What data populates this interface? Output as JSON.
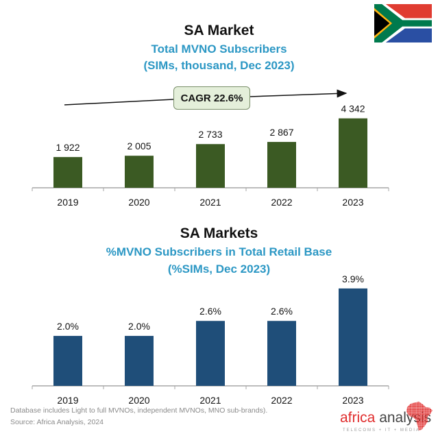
{
  "flag": {
    "icon": "south-africa-flag-icon"
  },
  "chart_data": [
    {
      "type": "bar",
      "title": "SA Market",
      "subtitle": "Total MVNO Subscribers",
      "subtitle2": "(SIMs, thousand, Dec 2023)",
      "xlabel": "",
      "ylabel": "",
      "categories": [
        "2019",
        "2020",
        "2021",
        "2022",
        "2023"
      ],
      "values": [
        1922,
        2005,
        2733,
        2867,
        4342
      ],
      "value_labels": [
        "1 922",
        "2 005",
        "2 733",
        "2 867",
        "4 342"
      ],
      "ylim": [
        0,
        4800
      ],
      "grid": false,
      "color": "#3b5a23",
      "annotation": {
        "text": "CAGR 22.6%",
        "arrow": "trend-arrow-up-right"
      }
    },
    {
      "type": "bar",
      "title": "SA Markets",
      "subtitle": "%MVNO Subscribers in Total Retail Base",
      "subtitle2": "(%SIMs, Dec 2023)",
      "xlabel": "",
      "ylabel": "",
      "categories": [
        "2019",
        "2020",
        "2021",
        "2022",
        "2023"
      ],
      "values": [
        2.0,
        2.0,
        2.6,
        2.6,
        3.9
      ],
      "value_labels": [
        "2.0%",
        "2.0%",
        "2.6%",
        "2.6%",
        "3.9%"
      ],
      "ylim": [
        0,
        4.5
      ],
      "grid": false,
      "color": "#1f4e79"
    }
  ],
  "footer": {
    "note": "Database includes Light to full MVNOs, independent MVNOs, MNO sub-brands).",
    "source": "Source: Africa Analysis, 2024"
  },
  "logo": {
    "word1": "africa",
    "word2": " analysis",
    "tagline": "TELECOMS + IT + MEDIA",
    "icon": "africa-map-icon"
  }
}
